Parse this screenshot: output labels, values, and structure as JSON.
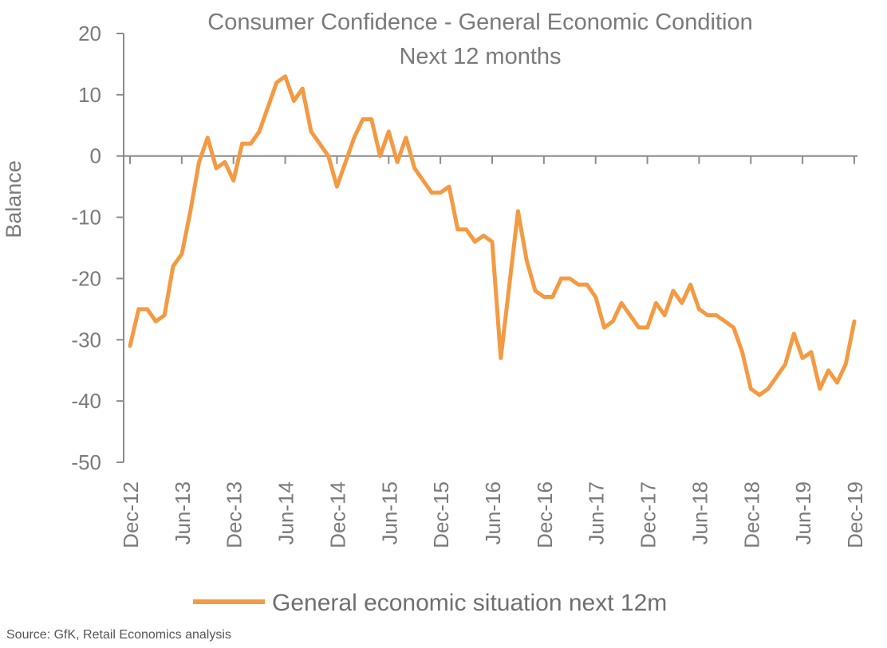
{
  "chart_data": {
    "type": "line",
    "title": "Consumer Confidence - General Economic Condition",
    "subtitle": "Next 12 months",
    "ylabel": "Balance",
    "xlabel": "",
    "ylim": [
      -50,
      20
    ],
    "yticks": [
      20,
      10,
      0,
      -10,
      -20,
      -30,
      -40,
      -50
    ],
    "x_tick_labels": [
      "Dec-12",
      "Jun-13",
      "Dec-13",
      "Jun-14",
      "Dec-14",
      "Jun-15",
      "Dec-15",
      "Jun-16",
      "Dec-16",
      "Jun-17",
      "Dec-17",
      "Jun-18",
      "Dec-18",
      "Jun-19",
      "Dec-19"
    ],
    "x_start": "Dec-12",
    "x_end": "Dec-19",
    "grid": false,
    "legend_position": "bottom",
    "series": [
      {
        "name": "General economic situation next 12m",
        "color": "#f39a43",
        "values": [
          -31,
          -25,
          -25,
          -27,
          -26,
          -18,
          -16,
          -9,
          -1,
          3,
          -2,
          -1,
          -4,
          2,
          2,
          4,
          8,
          12,
          13,
          9,
          11,
          4,
          2,
          0,
          -5,
          -1,
          3,
          6,
          6,
          0,
          4,
          -1,
          3,
          -2,
          -4,
          -6,
          -6,
          -5,
          -12,
          -12,
          -14,
          -13,
          -14,
          -33,
          -21,
          -9,
          -17,
          -22,
          -23,
          -23,
          -20,
          -20,
          -21,
          -21,
          -23,
          -28,
          -27,
          -24,
          -26,
          -28,
          -28,
          -24,
          -26,
          -22,
          -24,
          -21,
          -25,
          -26,
          -26,
          -27,
          -28,
          -32,
          -38,
          -39,
          -38,
          -36,
          -34,
          -29,
          -33,
          -32,
          -38,
          -35,
          -37,
          -34,
          -27
        ]
      }
    ]
  },
  "source": "Source: GfK, Retail Economics analysis"
}
